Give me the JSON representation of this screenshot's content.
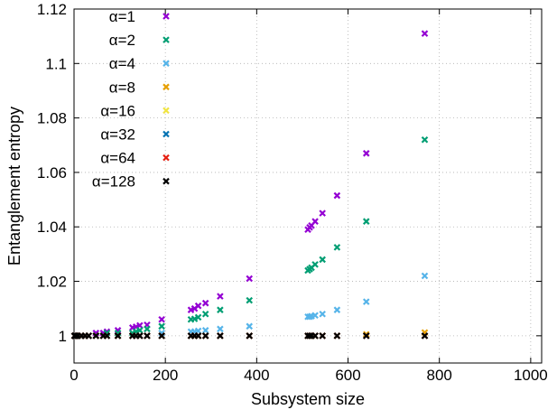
{
  "chart_data": {
    "type": "scatter",
    "title": "",
    "xlabel": "Subsystem size",
    "ylabel": "Entanglement entropy",
    "xlim": [
      0,
      1024
    ],
    "ylim": [
      0.99,
      1.12
    ],
    "x_ticks": [
      0,
      200,
      400,
      600,
      800,
      1000
    ],
    "y_ticks": [
      1,
      1.02,
      1.04,
      1.06,
      1.08,
      1.1,
      1.12
    ],
    "x_tick_labels": [
      "0",
      "200",
      "400",
      "600",
      "800",
      "1000"
    ],
    "y_tick_labels": [
      "1",
      "1.02",
      "1.04",
      "1.06",
      "1.08",
      "1.1",
      "1.12"
    ],
    "grid": true,
    "legend_position": "top-left",
    "marker": "x",
    "x": [
      1,
      2,
      4,
      8,
      16,
      24,
      32,
      48,
      64,
      72,
      96,
      128,
      136,
      144,
      160,
      192,
      256,
      264,
      272,
      288,
      320,
      384,
      512,
      516,
      520,
      528,
      544,
      576,
      640,
      768
    ],
    "series": [
      {
        "name": "α=1",
        "color": "#9400d3",
        "values": [
          1.0,
          1.0,
          1.0,
          1.0,
          1.0,
          1.0,
          1.0,
          1.001,
          1.001,
          1.0015,
          1.002,
          1.003,
          1.0033,
          1.0038,
          1.004,
          1.006,
          1.0095,
          1.01,
          1.011,
          1.012,
          1.0145,
          1.021,
          1.039,
          1.0398,
          1.0405,
          1.042,
          1.045,
          1.0515,
          1.067,
          1.111
        ]
      },
      {
        "name": "α=2",
        "color": "#009e73",
        "values": [
          1.0,
          1.0,
          1.0,
          1.0,
          1.0,
          1.0,
          1.0,
          1.0,
          1.0,
          1.001,
          1.001,
          1.001,
          1.0015,
          1.002,
          1.0025,
          1.0035,
          1.006,
          1.0062,
          1.0068,
          1.008,
          1.0095,
          1.013,
          1.024,
          1.0245,
          1.025,
          1.0262,
          1.028,
          1.0325,
          1.042,
          1.072
        ]
      },
      {
        "name": "α=4",
        "color": "#56b4e9",
        "values": [
          1.0,
          1.0,
          1.0,
          1.0,
          1.0,
          1.0,
          1.0,
          1.0,
          1.0,
          1.0,
          1.0,
          1.0,
          1.0,
          1.0,
          1.0,
          1.001,
          1.0015,
          1.0015,
          1.0018,
          1.002,
          1.0025,
          1.0035,
          1.007,
          1.007,
          1.0072,
          1.0075,
          1.008,
          1.0095,
          1.0125,
          1.022
        ]
      },
      {
        "name": "α=8",
        "color": "#e69f00",
        "values": [
          1.0,
          1.0,
          1.0,
          1.0,
          1.0,
          1.0,
          1.0,
          1.0,
          1.0,
          1.0,
          1.0,
          1.0,
          1.0,
          1.0,
          1.0,
          1.0,
          1.0,
          1.0,
          1.0,
          1.0,
          1.0,
          1.0,
          1.0,
          1.0,
          1.0,
          1.0,
          1.0,
          1.0,
          1.0005,
          1.0012
        ]
      },
      {
        "name": "α=16",
        "color": "#f0e442",
        "values": [
          1.0,
          1.0,
          1.0,
          1.0,
          1.0,
          1.0,
          1.0,
          1.0,
          1.0,
          1.0,
          1.0,
          1.0,
          1.0,
          1.0,
          1.0,
          1.0,
          1.0,
          1.0,
          1.0,
          1.0,
          1.0,
          1.0,
          1.0,
          1.0,
          1.0,
          1.0,
          1.0,
          1.0,
          1.0,
          1.0
        ]
      },
      {
        "name": "α=32",
        "color": "#0072b2",
        "values": [
          1.0,
          1.0,
          1.0,
          1.0,
          1.0,
          1.0,
          1.0,
          1.0,
          1.0,
          1.0,
          1.0,
          1.0,
          1.0,
          1.0,
          1.0,
          1.0,
          1.0,
          1.0,
          1.0,
          1.0,
          1.0,
          1.0,
          1.0,
          1.0,
          1.0,
          1.0,
          1.0,
          1.0,
          1.0,
          1.0
        ]
      },
      {
        "name": "α=64",
        "color": "#e51e10",
        "values": [
          1.0,
          1.0,
          1.0,
          1.0,
          1.0,
          1.0,
          1.0,
          1.0,
          1.0,
          1.0,
          1.0,
          1.0,
          1.0,
          1.0,
          1.0,
          1.0,
          1.0,
          1.0,
          1.0,
          1.0,
          1.0,
          1.0,
          1.0,
          1.0,
          1.0,
          1.0,
          1.0,
          1.0,
          1.0,
          1.0
        ]
      },
      {
        "name": "α=128",
        "color": "#000000",
        "values": [
          1.0,
          1.0,
          1.0,
          1.0,
          1.0,
          1.0,
          1.0,
          1.0,
          1.0,
          1.0,
          1.0,
          1.0,
          1.0,
          1.0,
          1.0,
          1.0,
          1.0,
          1.0,
          1.0,
          1.0,
          1.0,
          1.0,
          1.0,
          1.0,
          1.0,
          1.0,
          1.0,
          1.0,
          1.0,
          1.0
        ]
      }
    ]
  }
}
